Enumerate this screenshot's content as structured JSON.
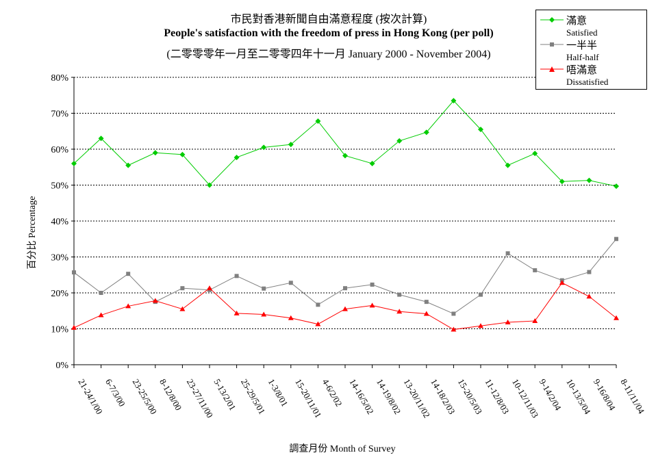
{
  "chart_data": {
    "type": "line",
    "title_zh": "市民對香港新聞自由滿意程度 (按次計算)",
    "title_en": "People's satisfaction with the freedom of press in Hong Kong (per poll)",
    "subtitle": "(二零零零年一月至二零零四年十一月 January 2000 - November 2004)",
    "xlabel": "調查月份 Month of Survey",
    "ylabel": "百分比 Percentage",
    "ylim": [
      0,
      80
    ],
    "yticks": [
      "0%",
      "10%",
      "20%",
      "30%",
      "40%",
      "50%",
      "60%",
      "70%",
      "80%"
    ],
    "grid": "horizontal dashed",
    "legend_position": "top-right",
    "categories": [
      "21-24/1/00",
      "6-7/3/00",
      "23-25/5/00",
      "8-12/8/00",
      "23-27/11/00",
      "5-13/2/01",
      "25-29/5/01",
      "1-3/8/01",
      "15-20/11/01",
      "4-6/2/02",
      "14-16/5/02",
      "14-19/8/02",
      "13-20/11/02",
      "14-18/2/03",
      "15-20/5/03",
      "11-12/8/03",
      "10-12/11/03",
      "9-14/2/04",
      "10-13/5/04",
      "9-16/8/04",
      "8-11/11/04"
    ],
    "series": [
      {
        "name_zh": "滿意",
        "name_en": "Satisfied",
        "color": "#00cc00",
        "marker": "diamond",
        "values": [
          56,
          63,
          55.5,
          59,
          58.5,
          50,
          57.7,
          60.5,
          61.3,
          67.8,
          58.2,
          56,
          62.3,
          64.7,
          73.5,
          65.5,
          55.5,
          58.8,
          51,
          51.3,
          49.7
        ]
      },
      {
        "name_zh": "一半半",
        "name_en": "Half-half",
        "color": "#808080",
        "marker": "square",
        "values": [
          25.7,
          20,
          25.3,
          17.5,
          21.3,
          20.8,
          24.7,
          21.2,
          22.8,
          16.7,
          21.3,
          22.3,
          19.5,
          17.5,
          14.2,
          19.5,
          31,
          26.3,
          23.5,
          25.8,
          35
        ]
      },
      {
        "name_zh": "唔滿意",
        "name_en": "Dissatisfied",
        "color": "#ff0000",
        "marker": "triangle",
        "values": [
          10.3,
          13.8,
          16.3,
          17.8,
          15.5,
          21.3,
          14.3,
          14,
          13,
          11.3,
          15.5,
          16.5,
          14.8,
          14.2,
          9.8,
          10.8,
          11.8,
          12.2,
          22.8,
          19,
          13
        ]
      }
    ]
  }
}
